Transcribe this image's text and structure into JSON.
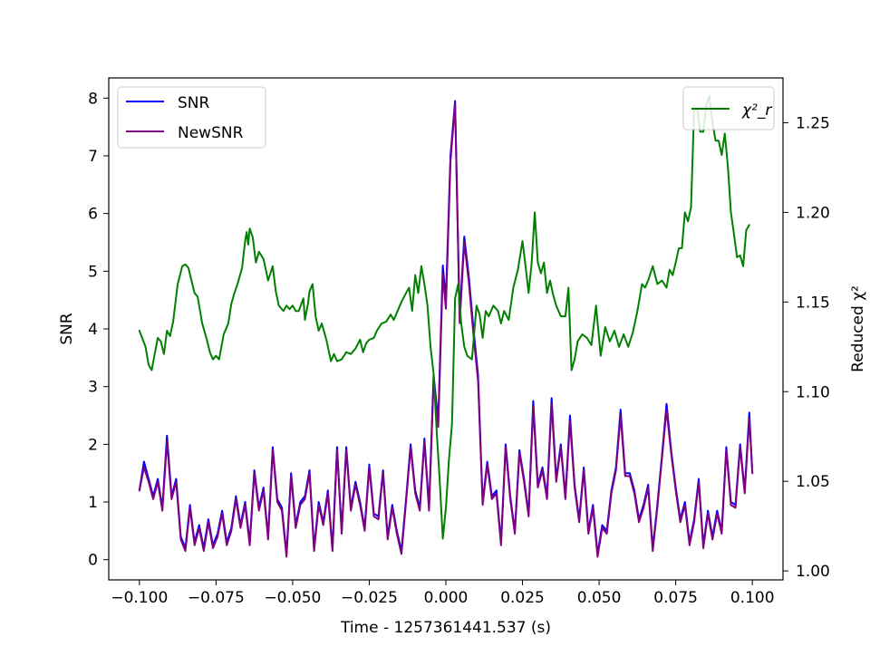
{
  "chart_data": {
    "type": "line",
    "xlabel": "Time - 1257361441.537 (s)",
    "ylabel_left": "SNR",
    "ylabel_right": "Reduced χ²",
    "xlim": [
      -0.11,
      0.11
    ],
    "ylim_left": [
      -0.35,
      8.35
    ],
    "ylim_right": [
      0.995,
      1.275
    ],
    "x_ticks": [
      -0.1,
      -0.075,
      -0.05,
      -0.025,
      0.0,
      0.025,
      0.05,
      0.075,
      0.1
    ],
    "x_tick_labels": [
      "−0.100",
      "−0.075",
      "−0.050",
      "−0.025",
      "0.000",
      "0.025",
      "0.050",
      "0.075",
      "0.100"
    ],
    "y_left_ticks": [
      0,
      1,
      2,
      3,
      4,
      5,
      6,
      7,
      8
    ],
    "y_left_tick_labels": [
      "0",
      "1",
      "2",
      "3",
      "4",
      "5",
      "6",
      "7",
      "8"
    ],
    "y_right_ticks": [
      1.0,
      1.05,
      1.1,
      1.15,
      1.2,
      1.25
    ],
    "y_right_tick_labels": [
      "1.00",
      "1.05",
      "1.10",
      "1.15",
      "1.20",
      "1.25"
    ],
    "grid": false,
    "legend_left_placement": "upper-left",
    "legend_right_placement": "upper-right",
    "series": [
      {
        "name": "SNR",
        "axis": "left",
        "color": "#0000ff",
        "x": [
          -0.1,
          -0.0985,
          -0.097,
          -0.0955,
          -0.094,
          -0.0925,
          -0.091,
          -0.0895,
          -0.088,
          -0.0865,
          -0.085,
          -0.0835,
          -0.082,
          -0.0805,
          -0.079,
          -0.0775,
          -0.076,
          -0.0745,
          -0.073,
          -0.0715,
          -0.07,
          -0.0685,
          -0.067,
          -0.0655,
          -0.064,
          -0.0625,
          -0.061,
          -0.0595,
          -0.058,
          -0.0565,
          -0.055,
          -0.0535,
          -0.052,
          -0.0505,
          -0.049,
          -0.0475,
          -0.046,
          -0.0445,
          -0.043,
          -0.0415,
          -0.04,
          -0.0385,
          -0.037,
          -0.0355,
          -0.034,
          -0.0325,
          -0.031,
          -0.0295,
          -0.028,
          -0.0265,
          -0.025,
          -0.0235,
          -0.022,
          -0.0205,
          -0.019,
          -0.0175,
          -0.016,
          -0.0145,
          -0.013,
          -0.0115,
          -0.01,
          -0.0085,
          -0.007,
          -0.0055,
          -0.004,
          -0.0025,
          -0.001,
          0.0,
          0.0015,
          0.003,
          0.0045,
          0.006,
          0.0075,
          0.009,
          0.0105,
          0.012,
          0.0135,
          0.015,
          0.0165,
          0.018,
          0.0195,
          0.021,
          0.0225,
          0.024,
          0.0255,
          0.027,
          0.0285,
          0.03,
          0.0315,
          0.033,
          0.0345,
          0.036,
          0.0375,
          0.039,
          0.0405,
          0.042,
          0.0435,
          0.045,
          0.0465,
          0.048,
          0.0495,
          0.051,
          0.0525,
          0.054,
          0.0555,
          0.057,
          0.0585,
          0.06,
          0.0615,
          0.063,
          0.0645,
          0.066,
          0.0675,
          0.069,
          0.0705,
          0.072,
          0.0735,
          0.075,
          0.0765,
          0.078,
          0.0795,
          0.081,
          0.0825,
          0.084,
          0.0855,
          0.087,
          0.0885,
          0.09,
          0.0915,
          0.093,
          0.0945,
          0.096,
          0.0975,
          0.099,
          0.1
        ],
        "y": [
          1.2,
          1.7,
          1.4,
          1.1,
          1.4,
          0.9,
          2.15,
          1.1,
          1.4,
          0.4,
          0.2,
          0.95,
          0.3,
          0.6,
          0.2,
          0.7,
          0.25,
          0.45,
          0.85,
          0.3,
          0.55,
          1.1,
          0.6,
          1.0,
          0.3,
          1.55,
          0.9,
          1.25,
          0.4,
          1.95,
          1.05,
          0.9,
          0.1,
          1.5,
          0.6,
          1.0,
          1.1,
          1.55,
          0.2,
          1.0,
          0.65,
          1.2,
          0.2,
          1.95,
          0.5,
          1.95,
          0.9,
          1.35,
          1.0,
          0.55,
          1.65,
          0.8,
          0.75,
          1.55,
          0.4,
          0.95,
          0.5,
          0.15,
          1.05,
          2.0,
          1.2,
          0.9,
          2.1,
          0.9,
          3.2,
          2.4,
          5.1,
          4.5,
          7.0,
          7.95,
          4.2,
          5.6,
          4.9,
          4.0,
          3.2,
          1.0,
          1.7,
          1.1,
          1.2,
          0.3,
          2.0,
          1.1,
          0.5,
          1.9,
          1.4,
          0.8,
          2.75,
          1.3,
          1.6,
          1.1,
          2.8,
          1.4,
          2.0,
          1.1,
          2.5,
          1.3,
          0.7,
          1.6,
          0.5,
          0.95,
          0.1,
          0.6,
          0.5,
          1.2,
          1.6,
          2.6,
          1.5,
          1.5,
          1.2,
          0.7,
          0.95,
          1.3,
          0.2,
          0.95,
          1.8,
          2.7,
          1.9,
          1.25,
          0.7,
          1.0,
          0.3,
          0.7,
          1.4,
          0.25,
          0.85,
          0.4,
          0.85,
          0.5,
          1.95,
          1.0,
          0.95,
          2.0,
          1.2,
          2.55,
          1.5
        ]
      },
      {
        "name": "NewSNR",
        "axis": "left",
        "color": "#800080",
        "x": [
          -0.1,
          -0.0985,
          -0.097,
          -0.0955,
          -0.094,
          -0.0925,
          -0.091,
          -0.0895,
          -0.088,
          -0.0865,
          -0.085,
          -0.0835,
          -0.082,
          -0.0805,
          -0.079,
          -0.0775,
          -0.076,
          -0.0745,
          -0.073,
          -0.0715,
          -0.07,
          -0.0685,
          -0.067,
          -0.0655,
          -0.064,
          -0.0625,
          -0.061,
          -0.0595,
          -0.058,
          -0.0565,
          -0.055,
          -0.0535,
          -0.052,
          -0.0505,
          -0.049,
          -0.0475,
          -0.046,
          -0.0445,
          -0.043,
          -0.0415,
          -0.04,
          -0.0385,
          -0.037,
          -0.0355,
          -0.034,
          -0.0325,
          -0.031,
          -0.0295,
          -0.028,
          -0.0265,
          -0.025,
          -0.0235,
          -0.022,
          -0.0205,
          -0.019,
          -0.0175,
          -0.016,
          -0.0145,
          -0.013,
          -0.0115,
          -0.01,
          -0.0085,
          -0.007,
          -0.0055,
          -0.004,
          -0.0025,
          -0.001,
          0.0,
          0.0015,
          0.003,
          0.0045,
          0.006,
          0.0075,
          0.009,
          0.0105,
          0.012,
          0.0135,
          0.015,
          0.0165,
          0.018,
          0.0195,
          0.021,
          0.0225,
          0.024,
          0.0255,
          0.027,
          0.0285,
          0.03,
          0.0315,
          0.033,
          0.0345,
          0.036,
          0.0375,
          0.039,
          0.0405,
          0.042,
          0.0435,
          0.045,
          0.0465,
          0.048,
          0.0495,
          0.051,
          0.0525,
          0.054,
          0.0555,
          0.057,
          0.0585,
          0.06,
          0.0615,
          0.063,
          0.0645,
          0.066,
          0.0675,
          0.069,
          0.0705,
          0.072,
          0.0735,
          0.075,
          0.0765,
          0.078,
          0.0795,
          0.081,
          0.0825,
          0.084,
          0.0855,
          0.087,
          0.0885,
          0.09,
          0.0915,
          0.093,
          0.0945,
          0.096,
          0.0975,
          0.099,
          0.1
        ],
        "y": [
          1.2,
          1.6,
          1.35,
          1.05,
          1.35,
          0.85,
          2.05,
          1.05,
          1.35,
          0.35,
          0.15,
          0.9,
          0.25,
          0.55,
          0.15,
          0.65,
          0.2,
          0.4,
          0.8,
          0.25,
          0.5,
          1.05,
          0.55,
          0.95,
          0.25,
          1.5,
          0.85,
          1.2,
          0.35,
          1.9,
          1.0,
          0.85,
          0.05,
          1.45,
          0.55,
          0.95,
          1.05,
          1.5,
          0.15,
          0.95,
          0.6,
          1.15,
          0.15,
          1.9,
          0.45,
          1.9,
          0.85,
          1.3,
          0.95,
          0.5,
          1.6,
          0.75,
          0.7,
          1.5,
          0.35,
          0.9,
          0.45,
          0.1,
          1.0,
          1.95,
          1.15,
          0.85,
          2.05,
          0.85,
          3.1,
          2.3,
          4.95,
          4.35,
          6.9,
          7.9,
          4.1,
          5.5,
          4.8,
          3.9,
          3.1,
          0.95,
          1.65,
          1.05,
          1.15,
          0.25,
          1.95,
          1.05,
          0.45,
          1.85,
          1.35,
          0.75,
          2.65,
          1.25,
          1.55,
          1.05,
          2.7,
          1.35,
          1.95,
          1.05,
          2.4,
          1.25,
          0.65,
          1.55,
          0.45,
          0.9,
          0.05,
          0.55,
          0.45,
          1.15,
          1.55,
          2.5,
          1.45,
          1.45,
          1.15,
          0.65,
          0.9,
          1.25,
          0.15,
          0.9,
          1.75,
          2.6,
          1.85,
          1.2,
          0.65,
          0.95,
          0.25,
          0.65,
          1.35,
          0.2,
          0.8,
          0.35,
          0.8,
          0.45,
          1.9,
          0.95,
          0.9,
          1.95,
          1.15,
          2.45,
          1.5
        ]
      },
      {
        "name": "χ²_r",
        "axis": "right",
        "color": "#008000",
        "x": [
          -0.1,
          -0.098,
          -0.097,
          -0.096,
          -0.094,
          -0.093,
          -0.092,
          -0.091,
          -0.09,
          -0.089,
          -0.0875,
          -0.086,
          -0.085,
          -0.084,
          -0.083,
          -0.082,
          -0.081,
          -0.0795,
          -0.078,
          -0.077,
          -0.076,
          -0.075,
          -0.074,
          -0.0725,
          -0.071,
          -0.07,
          -0.069,
          -0.068,
          -0.0665,
          -0.0655,
          -0.065,
          -0.0645,
          -0.064,
          -0.063,
          -0.062,
          -0.061,
          -0.0595,
          -0.058,
          -0.0565,
          -0.0555,
          -0.0545,
          -0.053,
          -0.052,
          -0.051,
          -0.05,
          -0.049,
          -0.048,
          -0.0465,
          -0.046,
          -0.045,
          -0.0445,
          -0.0435,
          -0.0425,
          -0.0415,
          -0.0405,
          -0.039,
          -0.0375,
          -0.0365,
          -0.0355,
          -0.034,
          -0.0325,
          -0.031,
          -0.0295,
          -0.028,
          -0.027,
          -0.026,
          -0.025,
          -0.0235,
          -0.0225,
          -0.021,
          -0.0195,
          -0.018,
          -0.017,
          -0.016,
          -0.0145,
          -0.013,
          -0.012,
          -0.011,
          -0.01,
          -0.009,
          -0.008,
          -0.007,
          -0.006,
          -0.005,
          -0.004,
          -0.003,
          -0.002,
          -0.001,
          0.0,
          0.001,
          0.002,
          0.003,
          0.004,
          0.005,
          0.006,
          0.007,
          0.0085,
          0.01,
          0.011,
          0.012,
          0.013,
          0.014,
          0.0155,
          0.017,
          0.018,
          0.019,
          0.0205,
          0.022,
          0.0235,
          0.025,
          0.026,
          0.027,
          0.028,
          0.029,
          0.03,
          0.031,
          0.032,
          0.033,
          0.034,
          0.035,
          0.036,
          0.0375,
          0.039,
          0.04,
          0.041,
          0.042,
          0.043,
          0.0445,
          0.046,
          0.0475,
          0.049,
          0.0505,
          0.052,
          0.0535,
          0.055,
          0.0565,
          0.058,
          0.0595,
          0.061,
          0.0625,
          0.064,
          0.065,
          0.066,
          0.0675,
          0.069,
          0.0705,
          0.072,
          0.073,
          0.074,
          0.075,
          0.076,
          0.077,
          0.078,
          0.079,
          0.08,
          0.081,
          0.082,
          0.083,
          0.084,
          0.085,
          0.086,
          0.087,
          0.088,
          0.089,
          0.09,
          0.091,
          0.092,
          0.093,
          0.094,
          0.095,
          0.096,
          0.097,
          0.098,
          0.099
        ],
        "y": [
          1.134,
          1.125,
          1.115,
          1.112,
          1.13,
          1.128,
          1.121,
          1.134,
          1.131,
          1.139,
          1.16,
          1.17,
          1.171,
          1.169,
          1.162,
          1.155,
          1.153,
          1.138,
          1.129,
          1.122,
          1.118,
          1.12,
          1.118,
          1.132,
          1.138,
          1.149,
          1.155,
          1.16,
          1.169,
          1.184,
          1.189,
          1.182,
          1.191,
          1.186,
          1.172,
          1.178,
          1.174,
          1.162,
          1.17,
          1.156,
          1.148,
          1.145,
          1.148,
          1.146,
          1.148,
          1.145,
          1.145,
          1.152,
          1.14,
          1.149,
          1.156,
          1.16,
          1.142,
          1.134,
          1.138,
          1.129,
          1.117,
          1.121,
          1.117,
          1.118,
          1.122,
          1.121,
          1.124,
          1.129,
          1.122,
          1.127,
          1.129,
          1.13,
          1.134,
          1.138,
          1.139,
          1.143,
          1.14,
          1.144,
          1.15,
          1.155,
          1.158,
          1.145,
          1.165,
          1.155,
          1.17,
          1.16,
          1.148,
          1.125,
          1.11,
          1.078,
          1.05,
          1.018,
          1.035,
          1.062,
          1.082,
          1.152,
          1.16,
          1.138,
          1.125,
          1.12,
          1.118,
          1.148,
          1.143,
          1.13,
          1.145,
          1.142,
          1.148,
          1.145,
          1.138,
          1.145,
          1.14,
          1.158,
          1.168,
          1.184,
          1.17,
          1.155,
          1.172,
          1.2,
          1.172,
          1.166,
          1.172,
          1.155,
          1.162,
          1.154,
          1.148,
          1.142,
          1.142,
          1.158,
          1.112,
          1.118,
          1.128,
          1.132,
          1.13,
          1.126,
          1.148,
          1.12,
          1.136,
          1.128,
          1.134,
          1.125,
          1.132,
          1.125,
          1.133,
          1.145,
          1.16,
          1.158,
          1.162,
          1.17,
          1.16,
          1.162,
          1.158,
          1.168,
          1.165,
          1.172,
          1.18,
          1.18,
          1.2,
          1.195,
          1.203,
          1.258,
          1.258,
          1.245,
          1.245,
          1.26,
          1.265,
          1.25,
          1.24,
          1.24,
          1.232,
          1.244,
          1.226,
          1.2,
          1.188,
          1.175,
          1.176,
          1.17,
          1.19,
          1.193
        ]
      }
    ]
  }
}
